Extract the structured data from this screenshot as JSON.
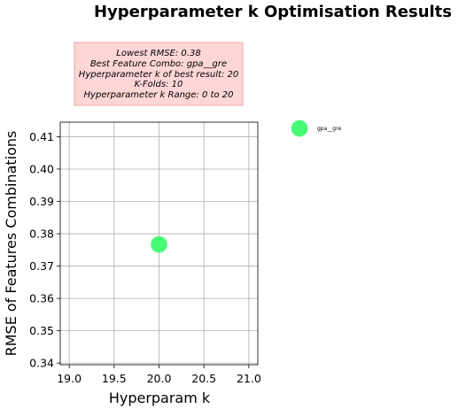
{
  "chart_data": {
    "type": "scatter",
    "title": "Hyperparameter k Optimisation Results",
    "xlabel": "Hyperparam k",
    "ylabel": "RMSE of Features Combinations",
    "xlim": [
      18.9,
      21.1
    ],
    "ylim": [
      0.3395,
      0.4145
    ],
    "xticks": [
      "19.0",
      "19.5",
      "20.0",
      "20.5",
      "21.0"
    ],
    "yticks": [
      "0.34",
      "0.35",
      "0.36",
      "0.37",
      "0.38",
      "0.39",
      "0.40",
      "0.41"
    ],
    "grid": true,
    "legend_position": "right-outside",
    "series": [
      {
        "name": "gpa__gre",
        "color": "#3dfb6d",
        "points": [
          {
            "x": 20,
            "y": 0.3767
          }
        ]
      }
    ],
    "annotation": {
      "lines": [
        "Lowest RMSE: 0.38",
        "Best Feature Combo: gpa__gre",
        "Hyperparameter k of best result: 20",
        "K-Folds: 10",
        "Hyperparameter k Range: 0 to 20"
      ],
      "background": "#ffd6d6",
      "border": "#e8a8a8"
    }
  }
}
